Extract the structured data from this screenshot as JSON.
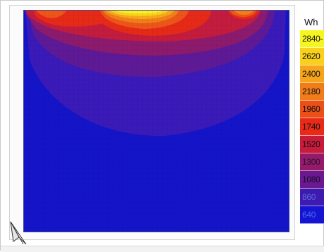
{
  "legend": {
    "unit": "Wh",
    "items": [
      {
        "label": "2840-",
        "color": "#f7f51f",
        "text_color": "#111111"
      },
      {
        "label": "2620",
        "color": "#f8d01d",
        "text_color": "#111111"
      },
      {
        "label": "2400",
        "color": "#f6a51a",
        "text_color": "#111111"
      },
      {
        "label": "2180",
        "color": "#f07d19",
        "text_color": "#111111"
      },
      {
        "label": "1960",
        "color": "#ec5018",
        "text_color": "#111111"
      },
      {
        "label": "1740",
        "color": "#e92a18",
        "text_color": "#111111"
      },
      {
        "label": "1520",
        "color": "#c81a3a",
        "text_color": "#111111"
      },
      {
        "label": "1300",
        "color": "#951b6a",
        "text_color": "#2a1030"
      },
      {
        "label": "1080",
        "color": "#6a1a8e",
        "text_color": "#1a0a30"
      },
      {
        "label": "860",
        "color": "#3f1ab0",
        "text_color": "#5a6ad8"
      },
      {
        "label": "640",
        "color": "#1414d2",
        "text_color": "#4a6ae8"
      }
    ]
  },
  "compass": {
    "icon": "north-arrow-icon"
  }
}
